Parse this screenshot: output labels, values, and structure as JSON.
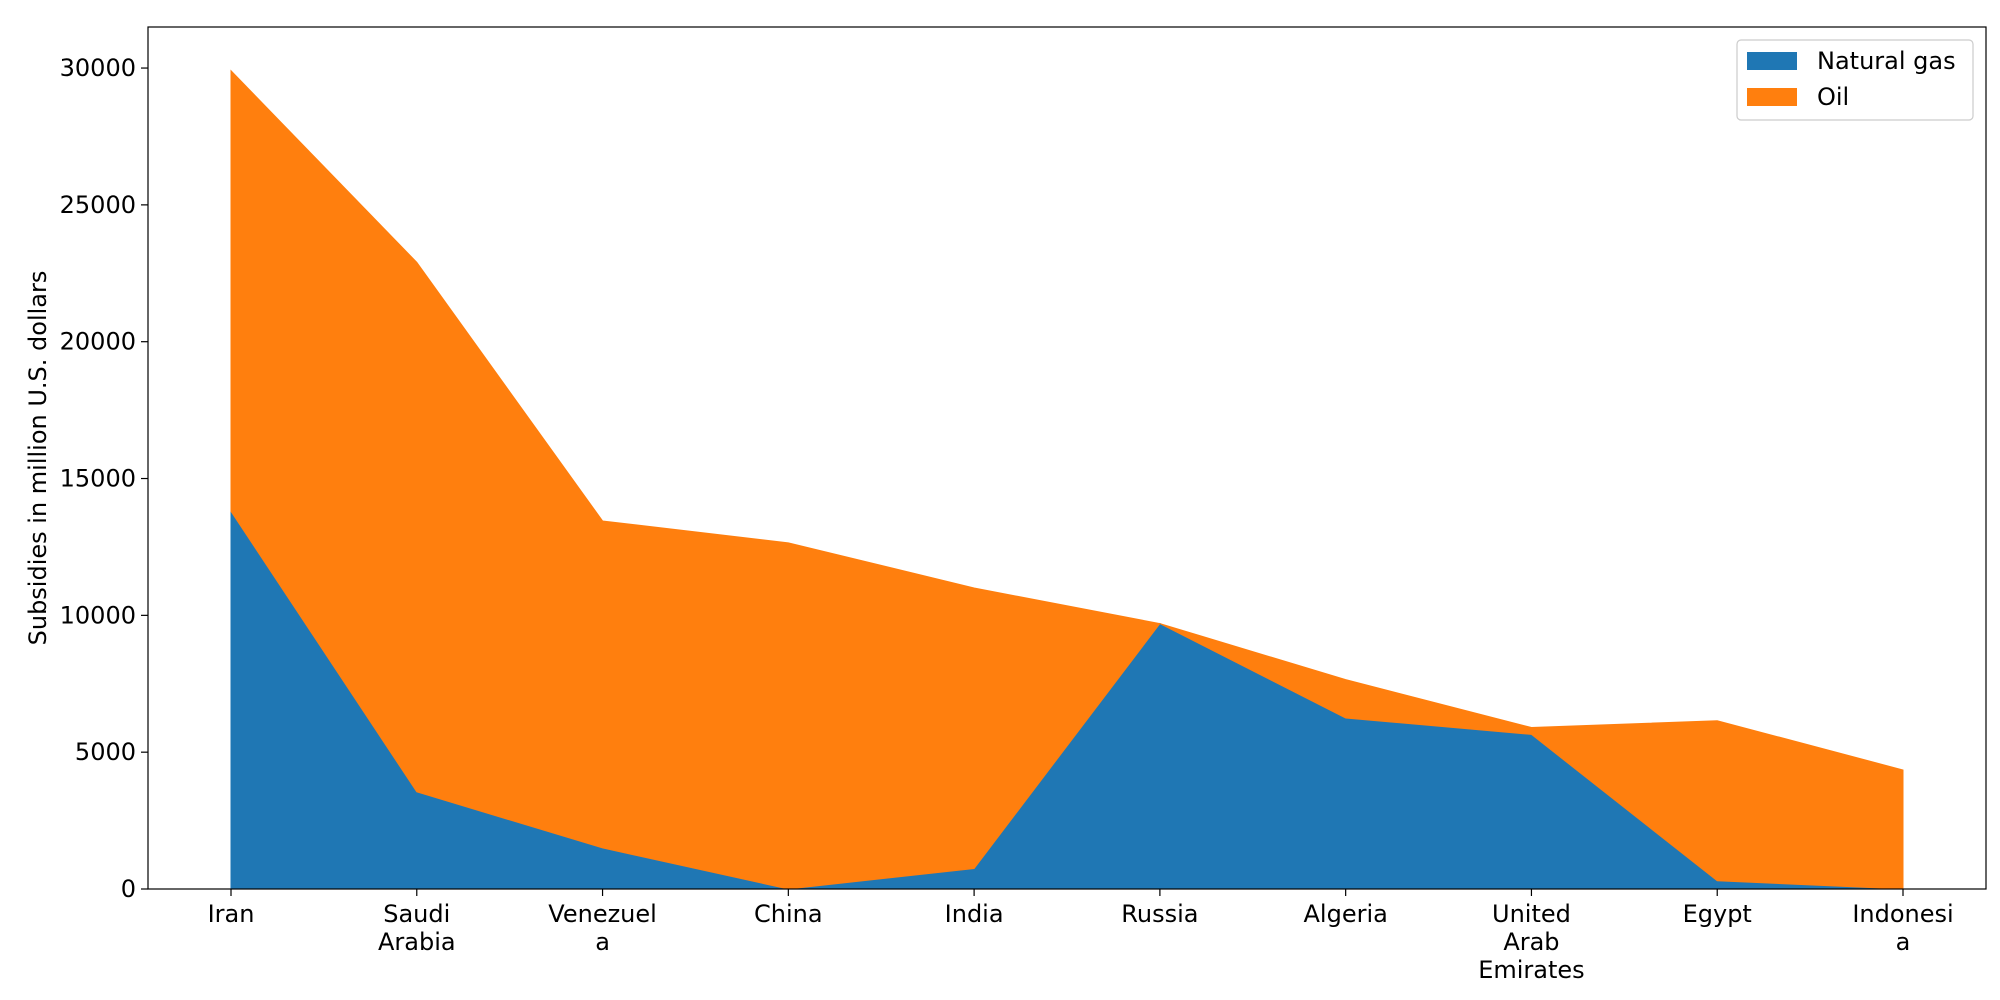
{
  "chart_data": {
    "type": "area",
    "stacked": true,
    "title": "",
    "xlabel": "",
    "ylabel": "Subsidies in million U.S. dollars",
    "categories": [
      [
        "Iran"
      ],
      [
        "Saudi",
        "Arabia"
      ],
      [
        "Venezuel",
        "a"
      ],
      [
        "China"
      ],
      [
        "India"
      ],
      [
        "Russia"
      ],
      [
        "Algeria"
      ],
      [
        "United",
        "Arab",
        "Emirates"
      ],
      [
        "Egypt"
      ],
      [
        "Indonesi",
        "a"
      ]
    ],
    "series": [
      {
        "name": "Natural gas",
        "color": "#1f77b4",
        "values": [
          13800,
          3550,
          1500,
          0,
          750,
          9700,
          6250,
          5650,
          300,
          0
        ]
      },
      {
        "name": "Oil",
        "color": "#ff7f0e",
        "values": [
          16100,
          19350,
          11950,
          12650,
          10250,
          0,
          1400,
          250,
          5850,
          4350
        ]
      }
    ],
    "ylim": [
      0,
      31500
    ],
    "yticks": [
      0,
      5000,
      10000,
      15000,
      20000,
      25000,
      30000
    ],
    "grid": false,
    "legend_position": "top-right"
  }
}
